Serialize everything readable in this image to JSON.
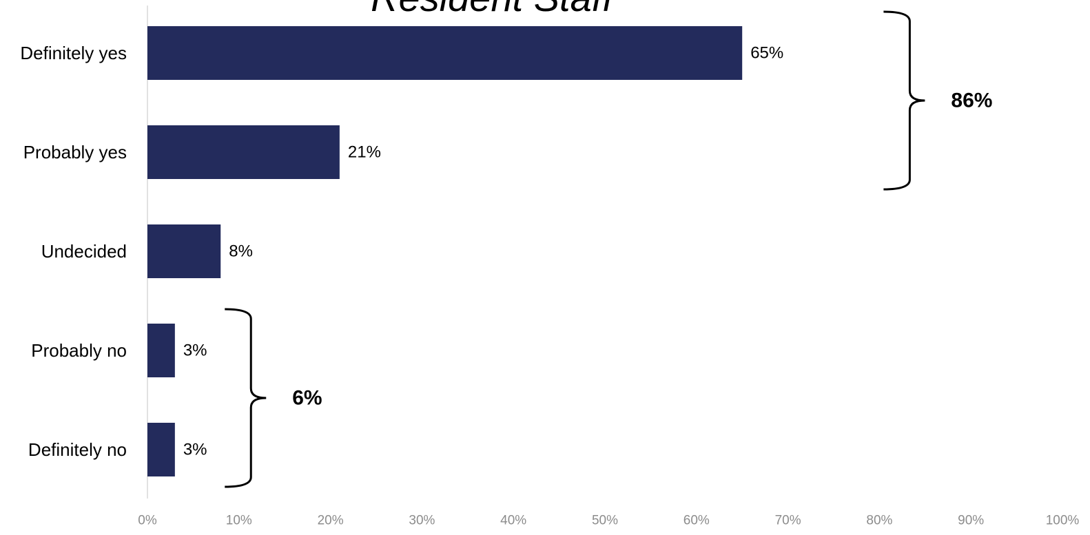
{
  "chart_data": {
    "type": "bar",
    "orientation": "horizontal",
    "title": "Resident Staff",
    "categories": [
      "Definitely yes",
      "Probably yes",
      "Undecided",
      "Probably no",
      "Definitely no"
    ],
    "values": [
      65,
      21,
      8,
      3,
      3
    ],
    "value_labels": [
      "65%",
      "21%",
      "8%",
      "3%",
      "3%"
    ],
    "xlim": [
      0,
      100
    ],
    "x_ticks": [
      0,
      10,
      20,
      30,
      40,
      50,
      60,
      70,
      80,
      90,
      100
    ],
    "x_tick_labels": [
      "0%",
      "10%",
      "20%",
      "30%",
      "40%",
      "50%",
      "60%",
      "70%",
      "80%",
      "90%",
      "100%"
    ],
    "grid": false,
    "bar_color": "#232B5C",
    "annotations": [
      {
        "label": "86%",
        "from_category": "Definitely yes",
        "to_category": "Probably yes"
      },
      {
        "label": "6%",
        "from_category": "Probably no",
        "to_category": "Definitely no"
      }
    ]
  }
}
